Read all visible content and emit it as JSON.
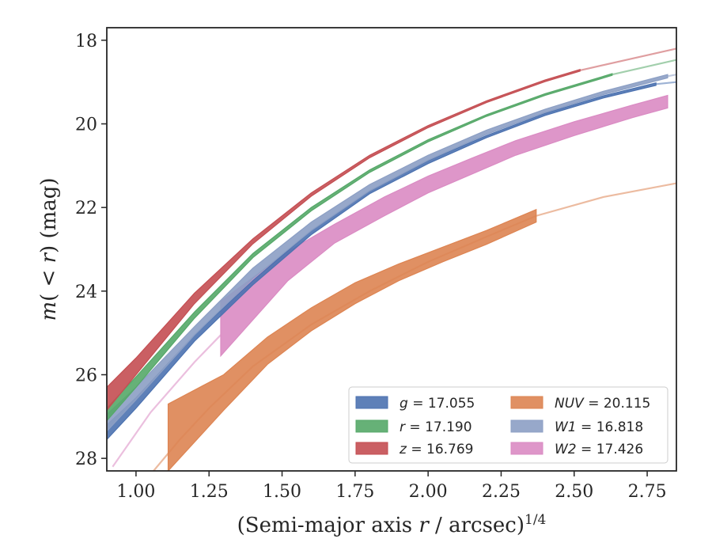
{
  "chart_data": {
    "type": "line",
    "xlabel": "(Semi-major axis r / arcsec)^1/4",
    "ylabel": "m(< r) (mag)",
    "xlim": [
      0.9,
      2.85
    ],
    "ylim": [
      28.3,
      17.7
    ],
    "y_inverted": true,
    "x_ticks": [
      "1.00",
      "1.25",
      "1.50",
      "1.75",
      "2.00",
      "2.25",
      "2.50",
      "2.75"
    ],
    "x_tick_values": [
      1.0,
      1.25,
      1.5,
      1.75,
      2.0,
      2.25,
      2.5,
      2.75
    ],
    "y_ticks": [
      "18",
      "20",
      "22",
      "24",
      "26",
      "28"
    ],
    "y_tick_values": [
      18,
      20,
      22,
      24,
      26,
      28
    ],
    "grid": false,
    "legend_position": "lower-right",
    "series": [
      {
        "name": "g = 17.055",
        "label_var": "g",
        "label_val": "17.055",
        "color": "#4c72b0",
        "x": [
          0.9,
          1.0,
          1.2,
          1.4,
          1.6,
          1.8,
          2.0,
          2.2,
          2.4,
          2.6,
          2.78
        ],
        "y_lo": [
          27.2,
          26.55,
          25.05,
          23.75,
          22.55,
          21.6,
          20.88,
          20.28,
          19.75,
          19.33,
          19.02
        ],
        "y_hi": [
          27.55,
          26.8,
          25.2,
          23.85,
          22.65,
          21.67,
          20.95,
          20.33,
          19.8,
          19.38,
          19.08
        ],
        "ext_x": [
          2.78,
          2.85
        ],
        "ext_y": [
          19.05,
          19.0
        ]
      },
      {
        "name": "r = 17.190",
        "label_var": "r",
        "label_val": "17.190",
        "color": "#55a868",
        "x": [
          0.9,
          1.0,
          1.2,
          1.4,
          1.6,
          1.8,
          2.0,
          2.2,
          2.4,
          2.63
        ],
        "y_lo": [
          26.8,
          26.05,
          24.5,
          23.1,
          22.0,
          21.1,
          20.38,
          19.78,
          19.28,
          18.8
        ],
        "y_hi": [
          27.1,
          26.3,
          24.65,
          23.2,
          22.08,
          21.16,
          20.43,
          19.82,
          19.32,
          18.84
        ],
        "ext_x": [
          2.63,
          2.85
        ],
        "ext_y": [
          18.82,
          18.47
        ]
      },
      {
        "name": "z = 16.769",
        "label_var": "z",
        "label_val": "16.769",
        "color": "#c44e52",
        "x": [
          0.9,
          1.0,
          1.2,
          1.4,
          1.6,
          1.8,
          2.0,
          2.2,
          2.4,
          2.52
        ],
        "y_lo": [
          26.3,
          25.6,
          24.05,
          22.75,
          21.65,
          20.75,
          20.04,
          19.45,
          18.95,
          18.7
        ],
        "y_hi": [
          26.85,
          26.0,
          24.3,
          22.87,
          21.73,
          20.81,
          20.09,
          19.49,
          18.99,
          18.74
        ],
        "ext_x": [
          2.52,
          2.85
        ],
        "ext_y": [
          18.72,
          18.2
        ]
      },
      {
        "name": "NUV = 20.115",
        "label_var": "NUV",
        "label_val": "20.115",
        "color": "#dd8452",
        "x": [
          1.11,
          1.3,
          1.45,
          1.6,
          1.75,
          1.9,
          2.05,
          2.2,
          2.37
        ],
        "y_lo": [
          26.7,
          26.0,
          25.1,
          24.4,
          23.8,
          23.35,
          22.95,
          22.55,
          22.05
        ],
        "y_hi": [
          28.3,
          26.85,
          25.75,
          24.95,
          24.3,
          23.75,
          23.3,
          22.88,
          22.35
        ],
        "ext_x": [
          1.06,
          1.15,
          1.25,
          1.4,
          1.6,
          1.8,
          2.0,
          2.2,
          2.37,
          2.6,
          2.85
        ],
        "ext_y": [
          28.3,
          27.55,
          26.8,
          25.8,
          24.8,
          24.0,
          23.3,
          22.7,
          22.2,
          21.75,
          21.42
        ]
      },
      {
        "name": "W1 = 16.818",
        "label_var": "W1",
        "label_val": "16.818",
        "color": "#8c9fc4",
        "x": [
          0.9,
          1.0,
          1.2,
          1.4,
          1.6,
          1.8,
          2.0,
          2.2,
          2.4,
          2.6,
          2.82
        ],
        "y_lo": [
          26.95,
          26.3,
          24.85,
          23.45,
          22.35,
          21.45,
          20.75,
          20.15,
          19.65,
          19.22,
          18.82
        ],
        "y_hi": [
          27.35,
          26.6,
          25.05,
          23.7,
          22.55,
          21.6,
          20.87,
          20.25,
          19.73,
          19.3,
          18.9
        ],
        "ext_x": [
          2.82,
          2.85
        ],
        "ext_y": [
          18.86,
          18.82
        ]
      },
      {
        "name": "W2 = 17.426",
        "label_var": "W2",
        "label_val": "17.426",
        "color": "#da8bc3",
        "x": [
          1.29,
          1.52,
          1.68,
          1.85,
          2.0,
          2.15,
          2.3,
          2.5,
          2.7,
          2.82
        ],
        "y_lo": [
          24.25,
          23.05,
          22.4,
          21.75,
          21.25,
          20.82,
          20.4,
          19.95,
          19.55,
          19.32
        ],
        "y_hi": [
          25.55,
          23.75,
          22.85,
          22.2,
          21.65,
          21.2,
          20.75,
          20.28,
          19.85,
          19.62
        ],
        "ext_x": [
          0.92,
          1.05,
          1.2,
          1.29
        ],
        "ext_y": [
          28.2,
          26.9,
          25.7,
          25.05
        ]
      }
    ]
  }
}
